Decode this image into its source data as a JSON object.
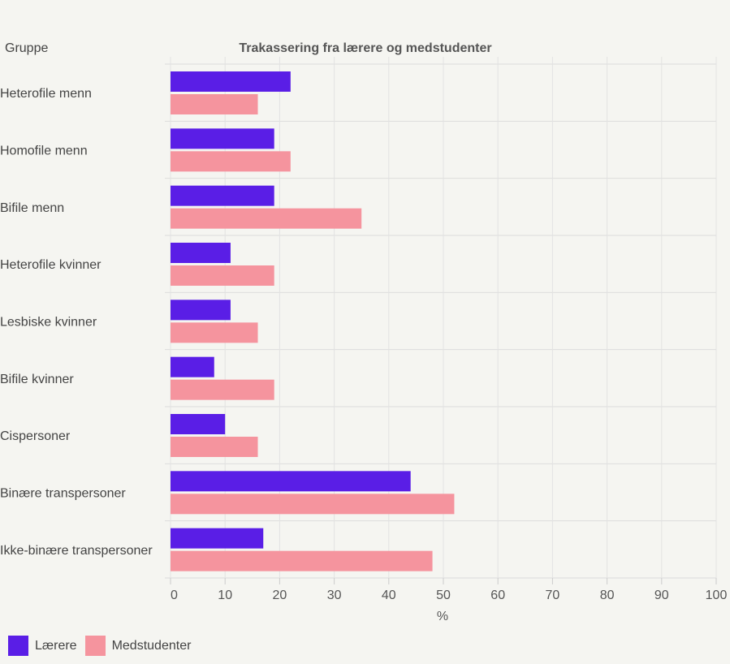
{
  "chart_data": {
    "type": "bar",
    "orientation": "horizontal",
    "title": "Trakassering fra lærere og medstudenter",
    "category_header": "Gruppe",
    "xlabel": "%",
    "xlim": [
      0,
      100
    ],
    "xticks": [
      0,
      10,
      20,
      30,
      40,
      50,
      60,
      70,
      80,
      90,
      100
    ],
    "grid": true,
    "legend_position": "bottom-left",
    "categories": [
      "Heterofile menn",
      "Homofile menn",
      "Bifile menn",
      "Heterofile kvinner",
      "Lesbiske kvinner",
      "Bifile kvinner",
      "Cispersoner",
      "Binære transpersoner",
      "Ikke-binære transpersoner"
    ],
    "series": [
      {
        "name": "Lærere",
        "color": "#5a1ee6",
        "values": [
          22,
          19,
          19,
          11,
          11,
          8,
          10,
          44,
          17
        ]
      },
      {
        "name": "Medstudenter",
        "color": "#f5949e",
        "values": [
          16,
          22,
          35,
          19,
          16,
          19,
          16,
          52,
          48
        ]
      }
    ]
  }
}
